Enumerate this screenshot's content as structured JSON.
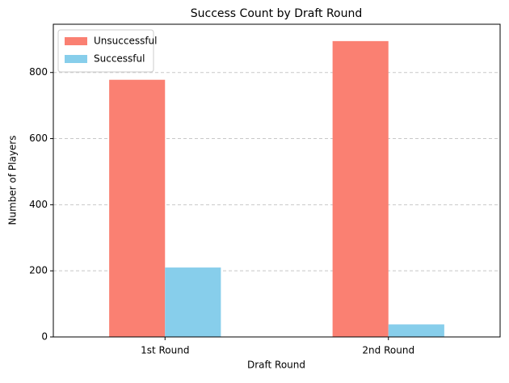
{
  "chart_data": {
    "type": "bar",
    "title": "Success Count by Draft Round",
    "x_label": "Draft Round",
    "y_label": "Number of Players",
    "categories": [
      "1st Round",
      "2nd Round"
    ],
    "series": [
      {
        "name": "Unsuccessful",
        "color": "#fa8072",
        "values": [
          778,
          895
        ]
      },
      {
        "name": "Successful",
        "color": "#87ceeb",
        "values": [
          210,
          38
        ]
      }
    ],
    "ylim": [
      0,
      946
    ],
    "yticks": [
      0,
      200,
      400,
      600,
      800
    ],
    "grid": true,
    "legend": "upper left"
  }
}
